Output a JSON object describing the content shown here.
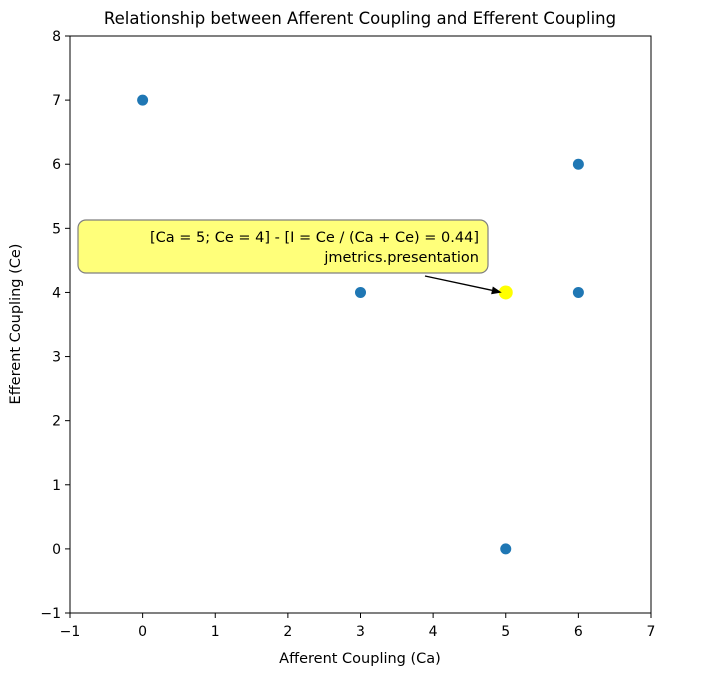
{
  "chart_data": {
    "type": "scatter",
    "title": "Relationship between Afferent Coupling and Efferent Coupling",
    "xlabel": "Afferent Coupling (Ca)",
    "ylabel": "Efferent Coupling (Ce)",
    "xlim": [
      -1,
      7
    ],
    "ylim": [
      -1,
      8
    ],
    "xticks": [
      "−1",
      "0",
      "1",
      "2",
      "3",
      "4",
      "5",
      "6",
      "7"
    ],
    "yticks": [
      "−1",
      "0",
      "1",
      "2",
      "3",
      "4",
      "5",
      "6",
      "7",
      "8"
    ],
    "grid": false,
    "points": [
      {
        "x": 0,
        "y": 7
      },
      {
        "x": 3,
        "y": 4
      },
      {
        "x": 5,
        "y": 4,
        "highlight": true
      },
      {
        "x": 6,
        "y": 6
      },
      {
        "x": 6,
        "y": 4
      },
      {
        "x": 5,
        "y": 0
      }
    ],
    "point_color": "#1f77b4",
    "highlight_color": "#ffff00",
    "annotation": {
      "x": 5,
      "y": 4,
      "line1": "[Ca = 5; Ce = 4] - [I = Ce / (Ca + Ce) = 0.44]",
      "line2": "jmetrics.presentation",
      "box_color": "#ffff7a"
    }
  }
}
